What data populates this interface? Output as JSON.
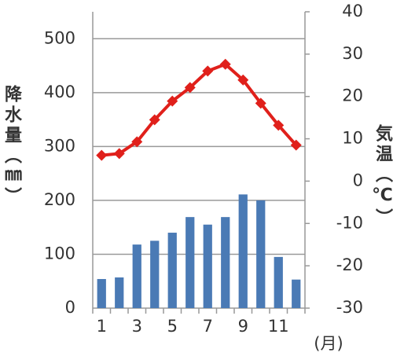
{
  "chart_data": {
    "type": "bar-line",
    "y_label": "降水量（㎜）",
    "y2_label": "気温（℃）",
    "x_label": "(月)",
    "categories": [
      "1",
      null,
      "3",
      null,
      "5",
      null,
      "7",
      null,
      "9",
      null,
      "11",
      null
    ],
    "series": [
      {
        "type": "bar",
        "color": "#4a7ab5",
        "axis": "y",
        "values": [
          54,
          57,
          118,
          125,
          140,
          169,
          155,
          169,
          211,
          200,
          95,
          53
        ]
      },
      {
        "type": "line",
        "color": "#e0201b",
        "axis": "y2",
        "values": [
          6.1,
          6.5,
          9.3,
          14.5,
          18.9,
          22.1,
          26.0,
          27.6,
          23.9,
          18.4,
          13.2,
          8.5
        ]
      }
    ],
    "ylim": [
      0,
      550
    ],
    "yticks": [
      0,
      100,
      200,
      300,
      400,
      500
    ],
    "y2lim": [
      -30,
      40
    ],
    "y2ticks": [
      -30,
      -20,
      -10,
      0,
      10,
      20,
      30,
      40
    ],
    "grid": true
  }
}
